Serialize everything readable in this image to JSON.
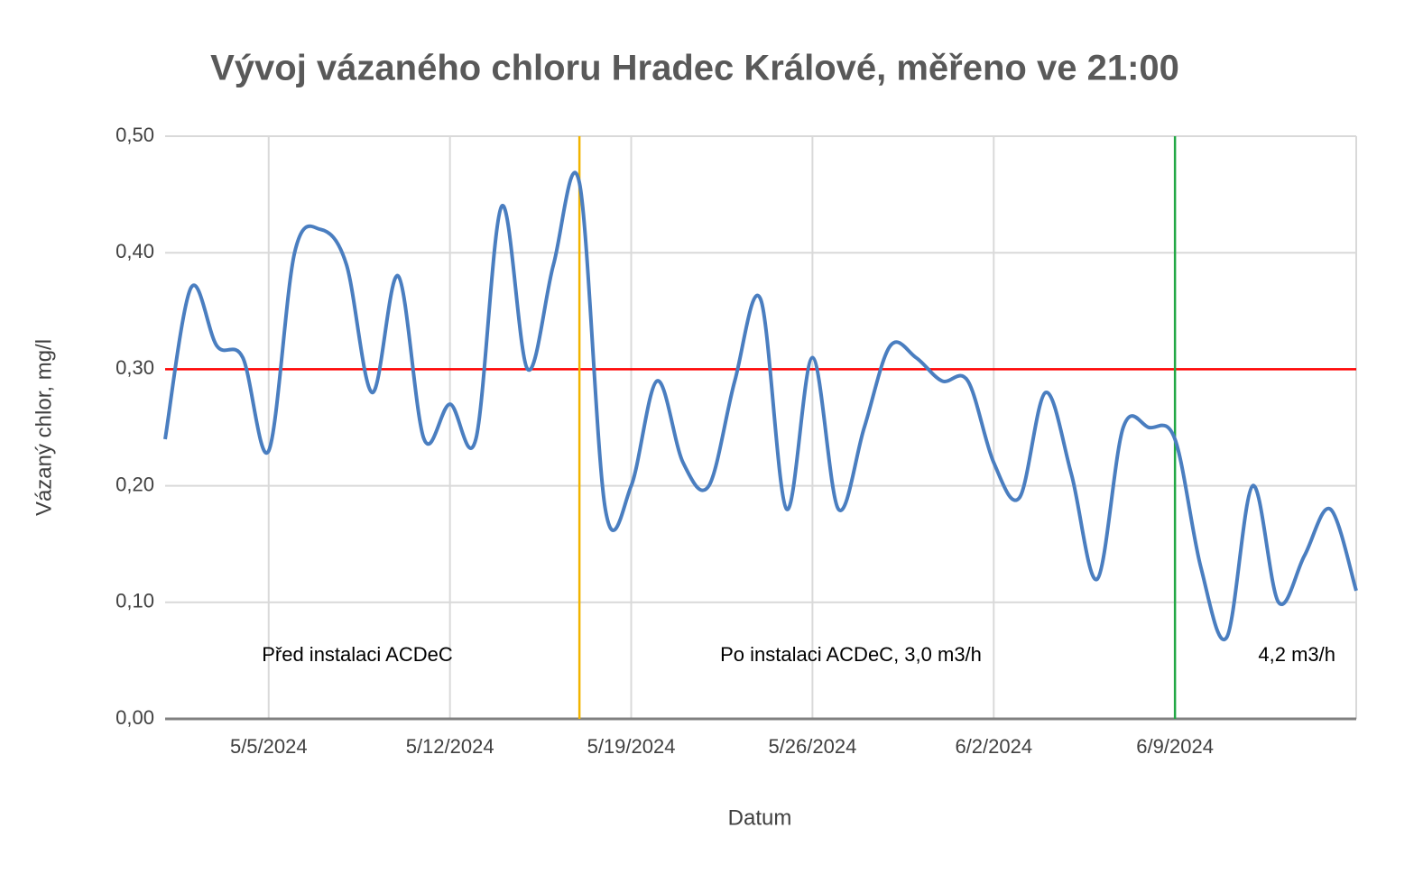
{
  "chart_data": {
    "type": "line",
    "title": "Vývoj vázaného chloru Hradec Králové, měřeno ve 21:00",
    "x_label": "Datum",
    "y_label": "Vázaný chlor, mg/l",
    "x": [
      "2024-05-01",
      "2024-05-02",
      "2024-05-03",
      "2024-05-04",
      "2024-05-05",
      "2024-05-06",
      "2024-05-07",
      "2024-05-08",
      "2024-05-09",
      "2024-05-10",
      "2024-05-11",
      "2024-05-12",
      "2024-05-13",
      "2024-05-14",
      "2024-05-15",
      "2024-05-16",
      "2024-05-17",
      "2024-05-18",
      "2024-05-19",
      "2024-05-20",
      "2024-05-21",
      "2024-05-22",
      "2024-05-23",
      "2024-05-24",
      "2024-05-25",
      "2024-05-26",
      "2024-05-27",
      "2024-05-28",
      "2024-05-29",
      "2024-05-30",
      "2024-05-31",
      "2024-06-01",
      "2024-06-02",
      "2024-06-03",
      "2024-06-04",
      "2024-06-05",
      "2024-06-06",
      "2024-06-07",
      "2024-06-08",
      "2024-06-09",
      "2024-06-10",
      "2024-06-11",
      "2024-06-12",
      "2024-06-13",
      "2024-06-14",
      "2024-06-15",
      "2024-06-16"
    ],
    "series": [
      {
        "name": "Vázaný chlor",
        "color": "#4a7ec0",
        "values": [
          0.24,
          0.37,
          0.32,
          0.31,
          0.23,
          0.4,
          0.42,
          0.39,
          0.28,
          0.38,
          0.24,
          0.27,
          0.24,
          0.44,
          0.3,
          0.39,
          0.46,
          0.18,
          0.2,
          0.29,
          0.22,
          0.2,
          0.29,
          0.36,
          0.18,
          0.31,
          0.18,
          0.25,
          0.32,
          0.31,
          0.29,
          0.29,
          0.22,
          0.19,
          0.28,
          0.21,
          0.12,
          0.25,
          0.25,
          0.24,
          0.13,
          0.07,
          0.2,
          0.1,
          0.14,
          0.18,
          0.11
        ]
      }
    ],
    "xlim": [
      "2024-05-01",
      "2024-06-16"
    ],
    "xticks": [
      {
        "value": "2024-05-05",
        "label": "5/5/2024"
      },
      {
        "value": "2024-05-12",
        "label": "5/12/2024"
      },
      {
        "value": "2024-05-19",
        "label": "5/19/2024"
      },
      {
        "value": "2024-05-26",
        "label": "5/26/2024"
      },
      {
        "value": "2024-06-02",
        "label": "6/2/2024"
      },
      {
        "value": "2024-06-09",
        "label": "6/9/2024"
      }
    ],
    "ylim": [
      0,
      0.5
    ],
    "yticks": [
      {
        "value": 0,
        "label": "0,00"
      },
      {
        "value": 0.1,
        "label": "0,10"
      },
      {
        "value": 0.2,
        "label": "0,20"
      },
      {
        "value": 0.3,
        "label": "0,30"
      },
      {
        "value": 0.4,
        "label": "0,40"
      },
      {
        "value": 0.5,
        "label": "0,50"
      }
    ],
    "grid": true,
    "smooth": true,
    "hlines": [
      {
        "value": 0.3,
        "color": "#ff0000"
      }
    ],
    "vlines": [
      {
        "x": "2024-05-17",
        "color": "#f2b400"
      },
      {
        "x": "2024-06-09",
        "color": "#22a845"
      }
    ],
    "annotations": [
      "Před instalaci ACDeC",
      "Po instalaci ACDeC, 3,0 m3/h",
      "4,2 m3/h"
    ]
  }
}
